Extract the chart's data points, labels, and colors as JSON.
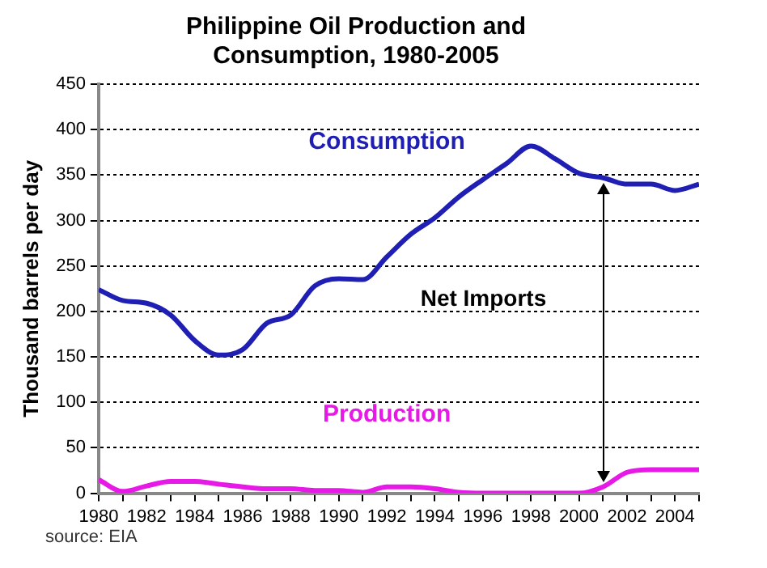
{
  "chart_data": {
    "type": "line",
    "title": "Philippine Oil Production and Consumption, 1980-2005",
    "ylabel": "Thousand barrels per day",
    "x": [
      1980,
      1981,
      1982,
      1983,
      1984,
      1985,
      1986,
      1987,
      1988,
      1989,
      1990,
      1991,
      1992,
      1993,
      1994,
      1995,
      1996,
      1997,
      1998,
      1999,
      2000,
      2001,
      2002,
      2003,
      2004,
      2005
    ],
    "series": [
      {
        "name": "Consumption",
        "color": "#1f1fb4",
        "values": [
          224,
          212,
          209,
          196,
          168,
          152,
          158,
          187,
          196,
          228,
          236,
          235,
          260,
          285,
          303,
          326,
          345,
          363,
          382,
          368,
          352,
          347,
          340,
          340,
          333,
          340
        ]
      },
      {
        "name": "Production",
        "color": "#e619e6",
        "values": [
          15,
          2,
          8,
          13,
          13,
          10,
          7,
          5,
          5,
          3,
          3,
          1,
          7,
          7,
          5,
          1,
          0,
          0,
          0,
          0,
          0,
          7,
          23,
          26,
          26,
          26
        ]
      }
    ],
    "xlim": [
      1980,
      2005
    ],
    "xticks": [
      1980,
      {
        "value": 1981,
        "label": null
      },
      1982,
      {
        "value": 1983,
        "label": null
      },
      1984,
      {
        "value": 1985,
        "label": null
      },
      1986,
      {
        "value": 1987,
        "label": null
      },
      1988,
      {
        "value": 1989,
        "label": null
      },
      1990,
      {
        "value": 1991,
        "label": null
      },
      1992,
      {
        "value": 1993,
        "label": null
      },
      1994,
      {
        "value": 1995,
        "label": null
      },
      1996,
      {
        "value": 1997,
        "label": null
      },
      1998,
      {
        "value": 1999,
        "label": null
      },
      2000,
      {
        "value": 2001,
        "label": null
      },
      2002,
      {
        "value": 2003,
        "label": null
      },
      2004,
      {
        "value": 2005,
        "label": null
      }
    ],
    "ylim": [
      0,
      450
    ],
    "yticks": [
      0,
      50,
      100,
      150,
      200,
      250,
      300,
      350,
      400,
      450
    ],
    "grid": "y",
    "legend": false,
    "marker": "none",
    "line_style": "solid",
    "annotations": [
      "Net Imports",
      "source: EIA"
    ]
  }
}
